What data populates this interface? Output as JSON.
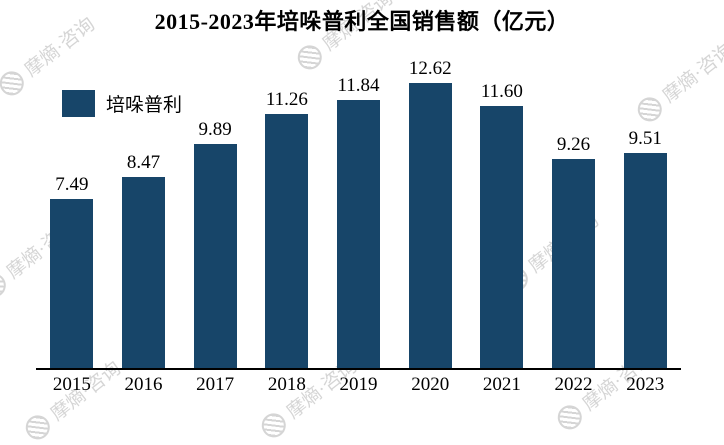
{
  "chart_data": {
    "type": "bar",
    "title": "2015-2023年培哚普利全国销售额（亿元）",
    "categories": [
      "2015",
      "2016",
      "2017",
      "2018",
      "2019",
      "2020",
      "2021",
      "2022",
      "2023"
    ],
    "series": [
      {
        "name": "培哚普利",
        "values": [
          7.49,
          8.47,
          9.89,
          11.26,
          11.84,
          12.62,
          11.6,
          9.26,
          9.51
        ]
      }
    ],
    "xlabel": "",
    "ylabel": "",
    "ylim": [
      0,
      13.5
    ],
    "grid": false,
    "legend_position": "top-left",
    "bar_color": "#174569",
    "value_label_decimals": 2
  },
  "watermark": {
    "text": "摩熵·咨询"
  }
}
